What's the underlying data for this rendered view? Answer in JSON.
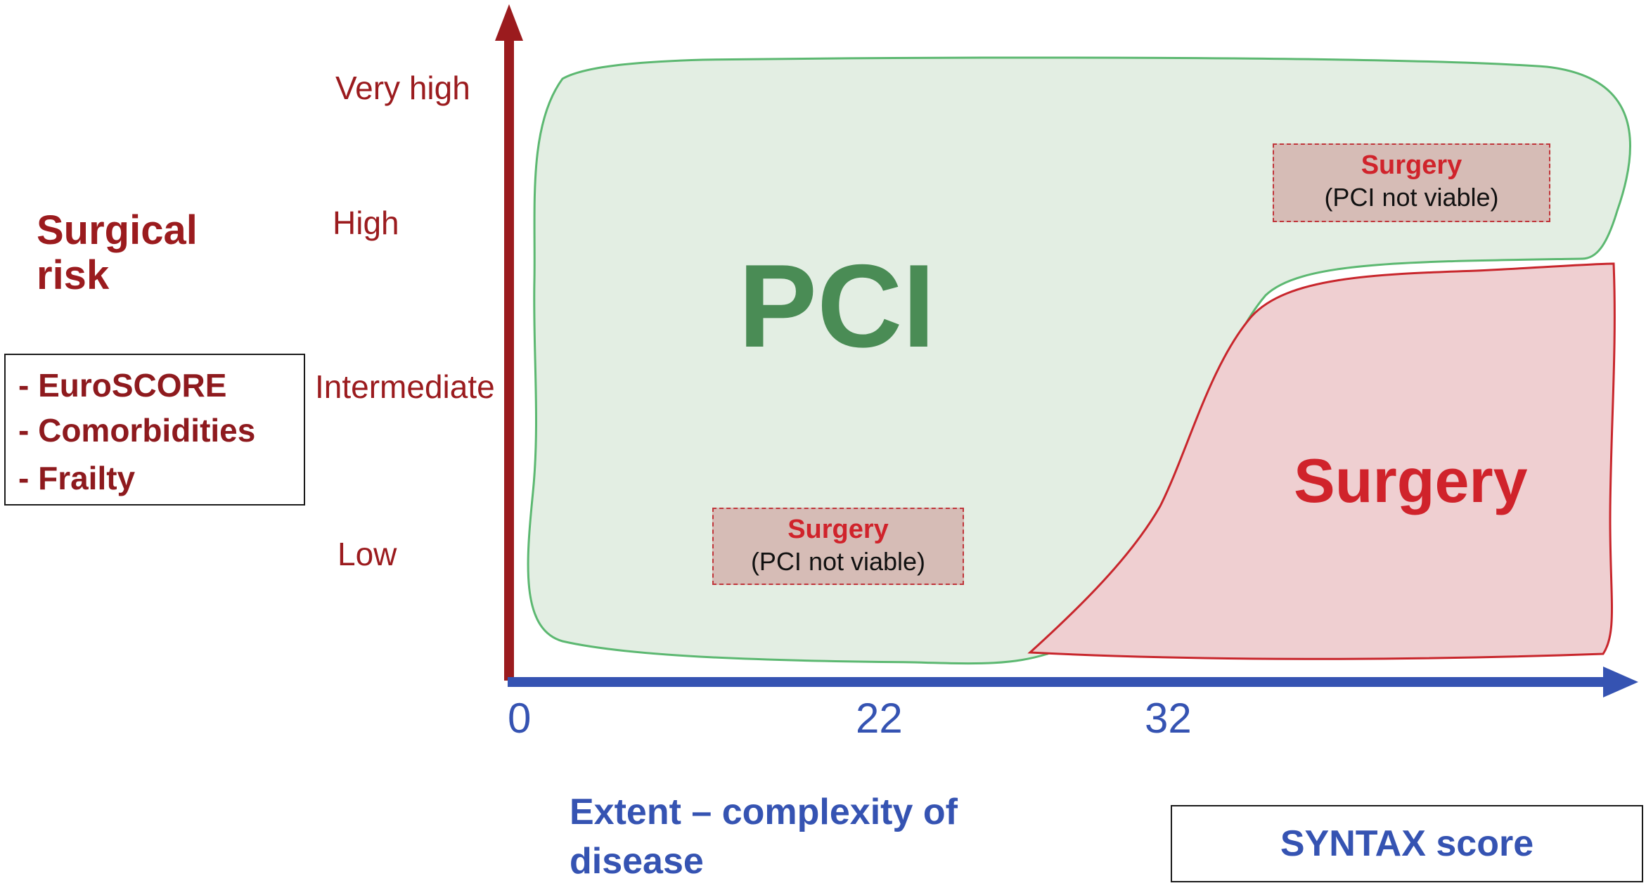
{
  "y_axis": {
    "title": "Surgical risk",
    "levels": [
      "Very high",
      "High",
      "Intermediate",
      "Low"
    ],
    "factors": [
      "- EuroSCORE",
      "- Comorbidities",
      "- Frailty"
    ],
    "color": "#9b1b1e"
  },
  "x_axis": {
    "ticks": [
      "0",
      "22",
      "32"
    ],
    "label": "Extent – complexity of disease",
    "score_label": "SYNTAX score",
    "color": "#3553b2"
  },
  "regions": {
    "pci": {
      "label": "PCI",
      "fill": "#e3eee3",
      "stroke": "#5cb871",
      "text_color": "#4a8c55"
    },
    "surgery": {
      "label": "Surgery",
      "fill": "#efcfd1",
      "stroke": "#c8262c",
      "text_color": "#d0232b"
    }
  },
  "callouts": [
    {
      "title": "Surgery",
      "subtitle": "(PCI not viable)"
    },
    {
      "title": "Surgery",
      "subtitle": "(PCI not viable)"
    }
  ]
}
